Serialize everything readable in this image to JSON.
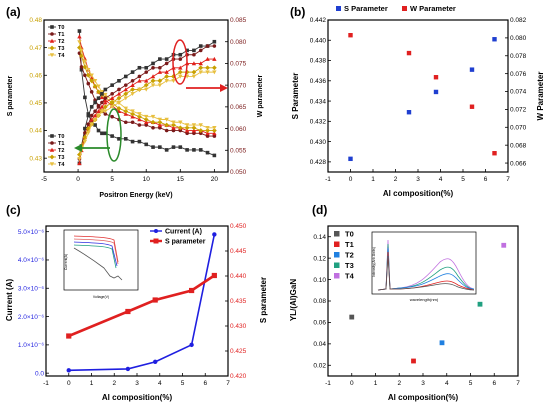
{
  "panels": {
    "a": {
      "label": "(a)",
      "xlabel": "Positron Energy (keV)",
      "ylabel_left": "S parameter",
      "ylabel_right": "W parameter",
      "xlim": [
        -5,
        22
      ],
      "ylim_left": [
        0.425,
        0.48
      ],
      "ylim_right": [
        0.05,
        0.085
      ],
      "x_ticks": [
        "-5",
        "0",
        "5",
        "10",
        "15",
        "20"
      ],
      "yl_ticks": [
        "0.43",
        "0.44",
        "0.45",
        "0.46",
        "0.47",
        "0.48"
      ],
      "yr_ticks": [
        "0.050",
        "0.055",
        "0.060",
        "0.065",
        "0.070",
        "0.075",
        "0.080",
        "0.085"
      ],
      "legend_top": [
        "T0",
        "T1",
        "T2",
        "T3",
        "T4"
      ],
      "legend_bottom": [
        "T0",
        "T1",
        "T2",
        "T3",
        "T4"
      ],
      "colors": [
        "#333333",
        "#7a1a1a",
        "#e0201a",
        "#c8a000",
        "#e8c040"
      ],
      "arrow_color_left": "#2a8a2a",
      "arrow_color_right": "#e02020"
    },
    "b": {
      "label": "(b)",
      "xlabel": "Al composition(%)",
      "ylabel_left": "S Parameter",
      "ylabel_right": "W Parameter",
      "legend": [
        "S Parameter",
        "W Parameter"
      ],
      "colors": [
        "#1f3fd0",
        "#e02020"
      ],
      "x_ticks": [
        "-1",
        "0",
        "1",
        "2",
        "3",
        "4",
        "5",
        "6",
        "7"
      ],
      "yl_ticks": [
        "0.428",
        "0.430",
        "0.432",
        "0.434",
        "0.436",
        "0.438",
        "0.440",
        "0.442"
      ],
      "yr_ticks": [
        "0.066",
        "0.068",
        "0.070",
        "0.072",
        "0.074",
        "0.076",
        "0.078",
        "0.080",
        "0.082"
      ]
    },
    "c": {
      "label": "(c)",
      "xlabel": "Al composition(%)",
      "ylabel_left": "Current (A)",
      "ylabel_right": "S parameter",
      "legend": [
        "Current (A)",
        "S parameter"
      ],
      "colors": [
        "#1f1fe0",
        "#e02020"
      ],
      "x_ticks": [
        "-1",
        "0",
        "1",
        "2",
        "3",
        "4",
        "5",
        "6",
        "7"
      ],
      "yl_ticks": [
        "0.0",
        "1.0×10⁻⁶",
        "2.0×10⁻⁶",
        "3.0×10⁻⁶",
        "4.0×10⁻⁶",
        "5.0×10⁻⁶"
      ],
      "yr_ticks": [
        "0.420",
        "0.425",
        "0.430",
        "0.435",
        "0.440",
        "0.445",
        "0.450"
      ],
      "inset_xlabel": "Voltage(V)",
      "inset_ylabel": "Current(A)"
    },
    "d": {
      "label": "(d)",
      "xlabel": "Al composition(%)",
      "ylabel": "YL/(Al)GaN",
      "legend": [
        "T0",
        "T1",
        "T2",
        "T3",
        "T4"
      ],
      "colors": [
        "#555555",
        "#e02020",
        "#2080e0",
        "#20a080",
        "#c070e0"
      ],
      "x_ticks": [
        "-1",
        "0",
        "1",
        "2",
        "3",
        "4",
        "5",
        "6",
        "7"
      ],
      "y_ticks": [
        "0.02",
        "0.04",
        "0.06",
        "0.08",
        "0.10",
        "0.12",
        "0.14"
      ],
      "inset_xlabel": "wavelength(nm)",
      "inset_ylabel": "Intensity(Arb.Units)"
    }
  },
  "chart_data": [
    {
      "panel": "a",
      "type": "line",
      "x": [
        0.2,
        0.5,
        1,
        1.5,
        2,
        2.5,
        3,
        3.5,
        4,
        5,
        6,
        7,
        8,
        9,
        10,
        11,
        12,
        13,
        14,
        15,
        16,
        17,
        18,
        19,
        20
      ],
      "series_S": [
        {
          "name": "T0",
          "values": [
            0.476,
            0.462,
            0.452,
            0.446,
            0.443,
            0.442,
            0.44,
            0.439,
            0.439,
            0.438,
            0.437,
            0.437,
            0.436,
            0.436,
            0.435,
            0.434,
            0.434,
            0.433,
            0.434,
            0.434,
            0.433,
            0.433,
            0.433,
            0.432,
            0.431
          ]
        },
        {
          "name": "T1",
          "values": [
            0.468,
            0.463,
            0.46,
            0.457,
            0.454,
            0.451,
            0.449,
            0.447,
            0.446,
            0.445,
            0.444,
            0.443,
            0.443,
            0.442,
            0.442,
            0.441,
            0.441,
            0.44,
            0.44,
            0.44,
            0.439,
            0.439,
            0.439,
            0.438,
            0.438
          ]
        },
        {
          "name": "T2",
          "values": [
            0.474,
            0.47,
            0.466,
            0.462,
            0.459,
            0.456,
            0.454,
            0.452,
            0.451,
            0.449,
            0.447,
            0.446,
            0.445,
            0.444,
            0.443,
            0.443,
            0.442,
            0.442,
            0.441,
            0.441,
            0.44,
            0.44,
            0.44,
            0.439,
            0.439
          ]
        },
        {
          "name": "T3",
          "values": [
            0.47,
            0.467,
            0.463,
            0.46,
            0.458,
            0.456,
            0.454,
            0.453,
            0.452,
            0.45,
            0.448,
            0.447,
            0.446,
            0.445,
            0.444,
            0.443,
            0.443,
            0.442,
            0.442,
            0.441,
            0.441,
            0.441,
            0.44,
            0.44,
            0.44
          ]
        },
        {
          "name": "T4",
          "values": [
            0.472,
            0.469,
            0.465,
            0.462,
            0.46,
            0.458,
            0.456,
            0.454,
            0.453,
            0.451,
            0.45,
            0.448,
            0.447,
            0.446,
            0.445,
            0.445,
            0.444,
            0.444,
            0.443,
            0.443,
            0.442,
            0.442,
            0.442,
            0.441,
            0.441
          ]
        }
      ],
      "series_W": [
        {
          "name": "T0",
          "values": [
            0.052,
            0.056,
            0.06,
            0.063,
            0.065,
            0.066,
            0.067,
            0.068,
            0.069,
            0.07,
            0.071,
            0.072,
            0.073,
            0.074,
            0.074,
            0.075,
            0.076,
            0.076,
            0.077,
            0.077,
            0.078,
            0.078,
            0.079,
            0.079,
            0.08
          ]
        },
        {
          "name": "T1",
          "values": [
            0.053,
            0.056,
            0.059,
            0.061,
            0.063,
            0.064,
            0.065,
            0.066,
            0.067,
            0.068,
            0.069,
            0.07,
            0.071,
            0.072,
            0.073,
            0.074,
            0.074,
            0.075,
            0.076,
            0.076,
            0.077,
            0.077,
            0.078,
            0.079,
            0.079
          ]
        },
        {
          "name": "T2",
          "values": [
            0.052,
            0.055,
            0.058,
            0.06,
            0.062,
            0.063,
            0.064,
            0.065,
            0.066,
            0.067,
            0.068,
            0.069,
            0.07,
            0.071,
            0.071,
            0.072,
            0.073,
            0.073,
            0.074,
            0.074,
            0.075,
            0.075,
            0.075,
            0.076,
            0.076
          ]
        },
        {
          "name": "T3",
          "values": [
            0.054,
            0.056,
            0.058,
            0.06,
            0.061,
            0.062,
            0.063,
            0.064,
            0.065,
            0.066,
            0.067,
            0.068,
            0.069,
            0.069,
            0.07,
            0.071,
            0.071,
            0.072,
            0.072,
            0.073,
            0.073,
            0.073,
            0.074,
            0.074,
            0.074
          ]
        },
        {
          "name": "T4",
          "values": [
            0.053,
            0.055,
            0.057,
            0.059,
            0.061,
            0.062,
            0.063,
            0.064,
            0.064,
            0.065,
            0.066,
            0.067,
            0.068,
            0.069,
            0.069,
            0.07,
            0.07,
            0.071,
            0.071,
            0.072,
            0.072,
            0.072,
            0.073,
            0.073,
            0.073
          ]
        }
      ]
    },
    {
      "panel": "b",
      "type": "scatter",
      "x": [
        0,
        2.6,
        3.8,
        5.4,
        6.4
      ],
      "series": [
        {
          "name": "S Parameter",
          "axis": "left",
          "values": [
            0.4283,
            0.4329,
            0.4349,
            0.4371,
            0.4401
          ]
        },
        {
          "name": "W Parameter",
          "axis": "right",
          "values": [
            0.0803,
            0.0783,
            0.0756,
            0.0723,
            0.0671
          ]
        }
      ],
      "ylim_left": [
        0.427,
        0.442
      ],
      "ylim_right": [
        0.065,
        0.082
      ],
      "xlim": [
        -1,
        7
      ]
    },
    {
      "panel": "c",
      "type": "line",
      "x": [
        0,
        2.6,
        3.8,
        5.4,
        6.4
      ],
      "series": [
        {
          "name": "Current (A)",
          "axis": "left",
          "values": [
            1e-07,
            1.5e-07,
            4e-07,
            1e-06,
            4.9e-06
          ]
        },
        {
          "name": "S parameter",
          "axis": "right",
          "values": [
            0.428,
            0.4329,
            0.4352,
            0.4371,
            0.4401
          ]
        }
      ],
      "ylim_left": [
        -1e-07,
        5.2e-06
      ],
      "ylim_right": [
        0.42,
        0.45
      ],
      "xlim": [
        -1,
        7
      ]
    },
    {
      "panel": "d",
      "type": "scatter",
      "x": [
        0,
        2.6,
        3.8,
        5.4,
        6.4
      ],
      "series": [
        {
          "name": "T0",
          "values": [
            0.065
          ]
        },
        {
          "name": "T1",
          "values": [
            0.024
          ]
        },
        {
          "name": "T2",
          "values": [
            0.041
          ]
        },
        {
          "name": "T3",
          "values": [
            0.077
          ]
        },
        {
          "name": "T4",
          "values": [
            0.132
          ]
        }
      ],
      "ylim": [
        0.01,
        0.15
      ],
      "xlim": [
        -1,
        7
      ]
    }
  ]
}
